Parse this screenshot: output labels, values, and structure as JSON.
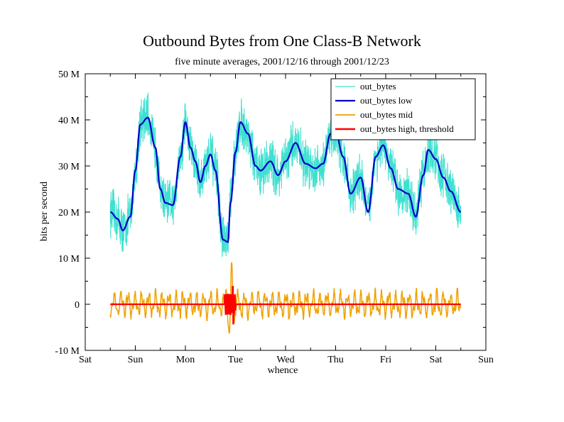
{
  "chart_data": {
    "type": "line",
    "title": "Outbound Bytes from One Class-B Network",
    "subtitle": "five minute averages, 2001/12/16 through 2001/12/23",
    "xlabel": "whence",
    "ylabel": "bits per second",
    "xlim": [
      0,
      8
    ],
    "ylim": [
      -10000000,
      50000000
    ],
    "x_tick_labels": [
      "Sat",
      "Sun",
      "Mon",
      "Tue",
      "Wed",
      "Thu",
      "Fri",
      "Sat",
      "Sun"
    ],
    "y_ticks": [
      -10000000,
      0,
      10000000,
      20000000,
      30000000,
      40000000,
      50000000
    ],
    "y_tick_labels": [
      "-10 M",
      "0",
      "10 M",
      "20 M",
      "30 M",
      "40 M",
      "50 M"
    ],
    "grid": false,
    "legend_position": "top-right",
    "series": [
      {
        "name": "out_bytes",
        "color": "#40e0d0",
        "style": "noisy"
      },
      {
        "name": "out_bytes low",
        "color": "#0000c8",
        "x": [
          0.5,
          0.65,
          0.75,
          0.9,
          1.0,
          1.1,
          1.25,
          1.4,
          1.5,
          1.6,
          1.75,
          1.9,
          2.0,
          2.1,
          2.2,
          2.3,
          2.4,
          2.5,
          2.6,
          2.75,
          2.85,
          2.9,
          3.0,
          3.1,
          3.25,
          3.4,
          3.5,
          3.7,
          3.85,
          4.0,
          4.2,
          4.4,
          4.6,
          4.75,
          4.9,
          5.0,
          5.15,
          5.3,
          5.5,
          5.65,
          5.8,
          5.95,
          6.1,
          6.25,
          6.45,
          6.6,
          6.75,
          6.85,
          7.0,
          7.15,
          7.3,
          7.5
        ],
        "values": [
          20000000,
          18500000,
          16000000,
          19000000,
          29000000,
          39000000,
          40500000,
          34000000,
          25000000,
          22000000,
          21500000,
          32000000,
          39500000,
          34000000,
          31000000,
          26500000,
          30000000,
          32500000,
          29000000,
          14000000,
          13500000,
          22000000,
          33000000,
          39500000,
          37000000,
          30000000,
          29000000,
          31000000,
          28000000,
          31000000,
          35000000,
          30500000,
          29500000,
          30500000,
          37000000,
          37500000,
          32000000,
          24000000,
          27500000,
          20000000,
          32000000,
          34500000,
          29500000,
          25000000,
          24000000,
          19000000,
          28000000,
          33500000,
          31500000,
          27500000,
          24500000,
          20000000
        ]
      },
      {
        "name": "out_bytes mid",
        "color": "#f0a000",
        "style": "oscillating around 0, about -9 M to +8 M"
      },
      {
        "name": "out_bytes high, threshold",
        "color": "#ff0000",
        "style": "flat at 0 with a spike near Tue"
      }
    ]
  }
}
